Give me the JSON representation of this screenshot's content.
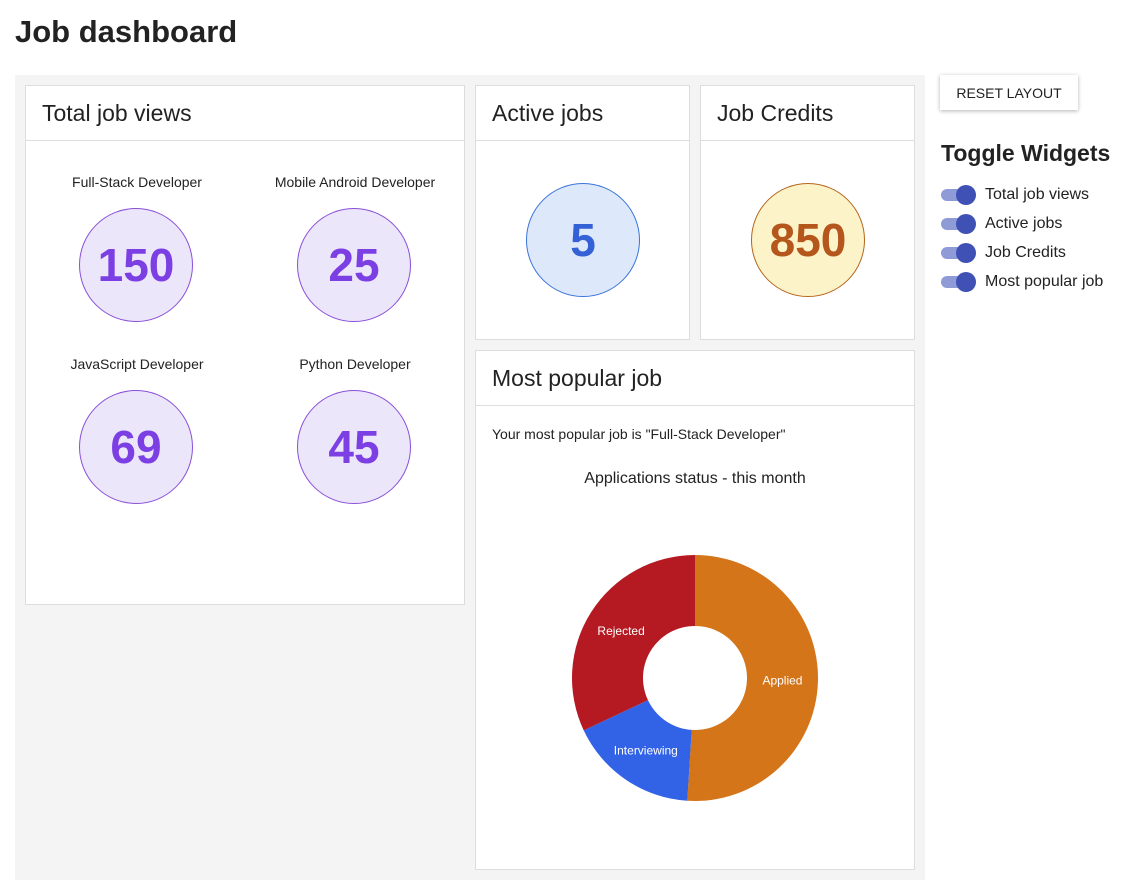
{
  "header": {
    "title": "Job dashboard"
  },
  "widgets": {
    "total_job_views": {
      "title": "Total job views",
      "jobs": [
        {
          "name": "Full-Stack Developer",
          "views": 150
        },
        {
          "name": "Mobile Android Developer",
          "views": 25
        },
        {
          "name": "JavaScript Developer",
          "views": 69
        },
        {
          "name": "Python Developer",
          "views": 45
        }
      ]
    },
    "active_jobs": {
      "title": "Active jobs",
      "count": 5
    },
    "job_credits": {
      "title": "Job Credits",
      "count": 850
    },
    "most_popular_job": {
      "title": "Most popular job",
      "text": "Your most popular job is \"Full-Stack Developer\""
    }
  },
  "sidebar": {
    "button": "RESET LAYOUT",
    "title": "Toggle Widgets",
    "toggles": [
      "Total job views",
      "Active jobs",
      "Job Credits",
      "Most popular job"
    ]
  },
  "chart_data": {
    "type": "donut",
    "title": "Applications status - this month",
    "categories": [
      "Applied",
      "Interviewing",
      "Rejected"
    ],
    "values": [
      51,
      17,
      32
    ],
    "colors": [
      "#d4751a",
      "#3262e6",
      "#b51a22"
    ]
  }
}
